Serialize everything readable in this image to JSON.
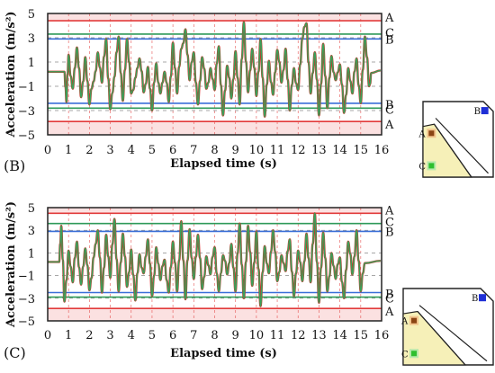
{
  "colors": {
    "band_red": "#f7c9c9",
    "line_red": "#e23b3b",
    "line_dark_red": "#b22222",
    "line_green": "#2e9a58",
    "line_blue": "#3a6fd8",
    "trace_red": "#c0392b",
    "trace_green": "#3aa05a",
    "dashed_grey": "#8a8a8a",
    "inset_fill": "#f6f0b8",
    "marker_brown": "#8b4513",
    "marker_green": "#2fbf2f",
    "marker_blue": "#1f2fd6"
  },
  "chart_data": [
    {
      "panel_label": "(B)",
      "type": "line",
      "xlabel": "Elapsed time (s)",
      "ylabel": "Acceleration (m/s²)",
      "xlim": [
        0,
        16
      ],
      "ylim": [
        -5,
        5
      ],
      "xticks": [
        "0",
        "1",
        "2",
        "3",
        "4",
        "5",
        "6",
        "7",
        "8",
        "9",
        "10",
        "11",
        "12",
        "13",
        "14",
        "15",
        "16"
      ],
      "yticks": [
        "5",
        "3",
        "1",
        "−1",
        "−3",
        "−5"
      ],
      "thresholds": [
        {
          "label": "A",
          "value": 4.4,
          "color": "line_red"
        },
        {
          "label": "C",
          "value": 3.3,
          "color": "line_green"
        },
        {
          "label": "B",
          "value": 2.9,
          "color": "line_blue"
        },
        {
          "label": "B",
          "value": -2.4,
          "color": "line_blue"
        },
        {
          "label": "C",
          "value": -2.8,
          "color": "line_green"
        },
        {
          "label": "A",
          "value": -3.9,
          "color": "line_red"
        }
      ],
      "active_range": [
        0.85,
        15.4
      ],
      "peaks": [
        [
          0.9,
          -2.3
        ],
        [
          1.0,
          1.6
        ],
        [
          1.2,
          -1.2
        ],
        [
          1.4,
          2.2
        ],
        [
          1.6,
          -1.9
        ],
        [
          1.8,
          1.4
        ],
        [
          2.0,
          -2.5
        ],
        [
          2.2,
          -0.6
        ],
        [
          2.4,
          1.8
        ],
        [
          2.6,
          -0.7
        ],
        [
          2.8,
          2.9
        ],
        [
          3.0,
          -2.9
        ],
        [
          3.2,
          -0.2
        ],
        [
          3.4,
          3.1
        ],
        [
          3.6,
          -2.2
        ],
        [
          3.8,
          2.9
        ],
        [
          4.0,
          -1.6
        ],
        [
          4.2,
          -0.3
        ],
        [
          4.4,
          1.3
        ],
        [
          4.6,
          -1.5
        ],
        [
          4.8,
          0.6
        ],
        [
          5.0,
          -3.0
        ],
        [
          5.2,
          0.9
        ],
        [
          5.4,
          -1.6
        ],
        [
          5.6,
          0.2
        ],
        [
          5.8,
          -2.3
        ],
        [
          6.0,
          2.6
        ],
        [
          6.2,
          -1.6
        ],
        [
          6.4,
          2.1
        ],
        [
          6.6,
          3.7
        ],
        [
          6.8,
          -0.5
        ],
        [
          7.0,
          1.8
        ],
        [
          7.2,
          -2.5
        ],
        [
          7.4,
          1.4
        ],
        [
          7.6,
          -1.2
        ],
        [
          7.8,
          0.5
        ],
        [
          8.0,
          -1.3
        ],
        [
          8.2,
          2.3
        ],
        [
          8.4,
          -3.4
        ],
        [
          8.6,
          0.7
        ],
        [
          8.8,
          -2.0
        ],
        [
          9.0,
          1.9
        ],
        [
          9.2,
          -2.5
        ],
        [
          9.4,
          4.3
        ],
        [
          9.6,
          -1.5
        ],
        [
          9.8,
          2.1
        ],
        [
          10.0,
          -1.8
        ],
        [
          10.2,
          2.9
        ],
        [
          10.4,
          -3.5
        ],
        [
          10.6,
          1.1
        ],
        [
          10.8,
          -1.7
        ],
        [
          11.0,
          2.0
        ],
        [
          11.2,
          -0.7
        ],
        [
          11.4,
          2.1
        ],
        [
          11.6,
          -3.0
        ],
        [
          11.8,
          0.5
        ],
        [
          12.0,
          -1.3
        ],
        [
          12.2,
          2.9
        ],
        [
          12.4,
          4.2
        ],
        [
          12.6,
          -1.6
        ],
        [
          12.8,
          1.8
        ],
        [
          13.0,
          -3.4
        ],
        [
          13.2,
          2.5
        ],
        [
          13.4,
          -2.8
        ],
        [
          13.6,
          1.5
        ],
        [
          13.8,
          -0.5
        ],
        [
          14.0,
          0.8
        ],
        [
          14.2,
          -3.2
        ],
        [
          14.4,
          0.5
        ],
        [
          14.6,
          -1.6
        ],
        [
          14.8,
          1.3
        ],
        [
          15.0,
          -2.4
        ],
        [
          15.2,
          3.1
        ],
        [
          15.4,
          -1.0
        ]
      ],
      "inset_labels": [
        "A",
        "B",
        "C"
      ]
    },
    {
      "panel_label": "(C)",
      "type": "line",
      "xlabel": "Elapsed time (s)",
      "ylabel": "Acceleration (m/s²)",
      "xlim": [
        0,
        16
      ],
      "ylim": [
        -5,
        5
      ],
      "xticks": [
        "0",
        "1",
        "2",
        "3",
        "4",
        "5",
        "6",
        "7",
        "8",
        "9",
        "10",
        "11",
        "12",
        "13",
        "14",
        "15",
        "16"
      ],
      "yticks": [
        "5",
        "3",
        "1",
        "−1",
        "−3",
        "−5"
      ],
      "thresholds": [
        {
          "label": "A",
          "value": 4.5,
          "color": "line_red"
        },
        {
          "label": "C",
          "value": 3.6,
          "color": "line_green"
        },
        {
          "label": "B",
          "value": 2.9,
          "color": "line_blue"
        },
        {
          "label": "B",
          "value": -2.5,
          "color": "line_blue"
        },
        {
          "label": "C",
          "value": -2.9,
          "color": "line_green"
        },
        {
          "label": "A",
          "value": -3.9,
          "color": "line_red"
        }
      ],
      "active_range": [
        0.6,
        15.1
      ],
      "peaks": [
        [
          0.65,
          3.4
        ],
        [
          0.8,
          -3.3
        ],
        [
          1.0,
          1.2
        ],
        [
          1.2,
          -1.6
        ],
        [
          1.4,
          2.0
        ],
        [
          1.6,
          -1.8
        ],
        [
          1.8,
          1.4
        ],
        [
          2.0,
          -2.3
        ],
        [
          2.2,
          0.6
        ],
        [
          2.4,
          3.0
        ],
        [
          2.6,
          -2.5
        ],
        [
          2.8,
          2.6
        ],
        [
          3.0,
          -1.2
        ],
        [
          3.2,
          4.0
        ],
        [
          3.4,
          -2.4
        ],
        [
          3.6,
          2.7
        ],
        [
          3.8,
          -2.0
        ],
        [
          4.0,
          1.3
        ],
        [
          4.2,
          -3.2
        ],
        [
          4.4,
          0.9
        ],
        [
          4.6,
          -0.8
        ],
        [
          4.8,
          2.2
        ],
        [
          5.0,
          -2.8
        ],
        [
          5.2,
          1.5
        ],
        [
          5.4,
          -1.4
        ],
        [
          5.6,
          0.4
        ],
        [
          5.8,
          -2.5
        ],
        [
          6.0,
          2.0
        ],
        [
          6.2,
          -2.4
        ],
        [
          6.4,
          3.8
        ],
        [
          6.6,
          -3.1
        ],
        [
          6.8,
          3.1
        ],
        [
          7.0,
          -1.3
        ],
        [
          7.2,
          2.6
        ],
        [
          7.4,
          -2.2
        ],
        [
          7.6,
          0.7
        ],
        [
          7.8,
          -0.9
        ],
        [
          8.0,
          1.5
        ],
        [
          8.2,
          -2.4
        ],
        [
          8.4,
          0.8
        ],
        [
          8.6,
          -0.9
        ],
        [
          8.8,
          1.8
        ],
        [
          9.0,
          -2.4
        ],
        [
          9.2,
          3.6
        ],
        [
          9.4,
          -3.0
        ],
        [
          9.6,
          3.4
        ],
        [
          9.8,
          -1.9
        ],
        [
          10.0,
          2.9
        ],
        [
          10.2,
          -3.7
        ],
        [
          10.4,
          1.6
        ],
        [
          10.6,
          -0.8
        ],
        [
          10.8,
          3.0
        ],
        [
          11.0,
          -1.5
        ],
        [
          11.2,
          0.8
        ],
        [
          11.4,
          -0.6
        ],
        [
          11.6,
          2.2
        ],
        [
          11.8,
          -2.8
        ],
        [
          12.0,
          1.2
        ],
        [
          12.2,
          -1.5
        ],
        [
          12.4,
          2.7
        ],
        [
          12.6,
          -1.6
        ],
        [
          12.8,
          4.5
        ],
        [
          13.0,
          -3.4
        ],
        [
          13.2,
          2.8
        ],
        [
          13.4,
          -2.4
        ],
        [
          13.6,
          1.0
        ],
        [
          13.8,
          -1.3
        ],
        [
          14.0,
          0.6
        ],
        [
          14.2,
          -3.0
        ],
        [
          14.4,
          2.0
        ],
        [
          14.6,
          -0.9
        ],
        [
          14.8,
          3.0
        ],
        [
          15.0,
          -2.4
        ]
      ],
      "inset_labels": [
        "A",
        "B",
        "C"
      ]
    }
  ]
}
